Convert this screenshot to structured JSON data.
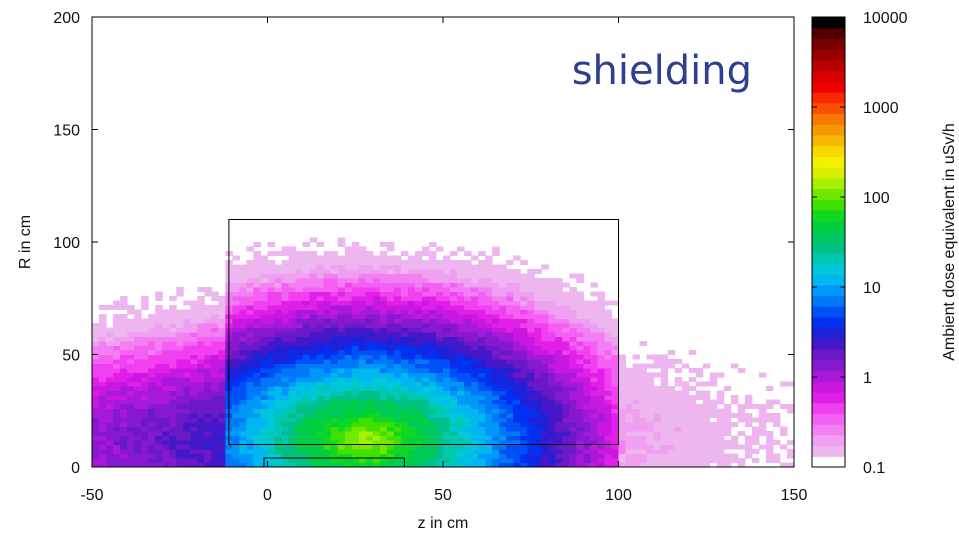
{
  "chart_data": {
    "type": "heatmap",
    "title": "",
    "annotation": "shielding",
    "xlabel": "z in cm",
    "ylabel": "R in cm",
    "xlim": [
      -50,
      150
    ],
    "ylim": [
      0,
      200
    ],
    "x_ticks": [
      "-50",
      "0",
      "50",
      "100",
      "150"
    ],
    "y_ticks": [
      "0",
      "50",
      "100",
      "150",
      "200"
    ],
    "grid": false,
    "colorbar": {
      "label": "Ambient dose equivalent in uSv/h",
      "scale": "log",
      "range": [
        0.1,
        10000
      ],
      "ticks": [
        "0.1",
        "1",
        "10",
        "100",
        "1000",
        "10000"
      ],
      "colors": [
        "#ffffff",
        "#eeb6ee",
        "#f0a0f0",
        "#f380f3",
        "#f460f4",
        "#f040f0",
        "#e020e8",
        "#c818e0",
        "#a818d8",
        "#8818d0",
        "#6a18c8",
        "#4418c8",
        "#2020d8",
        "#0030f0",
        "#0050f8",
        "#0078f8",
        "#0098f8",
        "#00b8f0",
        "#00c8d8",
        "#00c8b0",
        "#00c088",
        "#00c860",
        "#00d040",
        "#10d820",
        "#40e000",
        "#70e800",
        "#a8f000",
        "#d8f000",
        "#f0f000",
        "#f8d800",
        "#f8b800",
        "#f89800",
        "#f87800",
        "#f85000",
        "#f82800",
        "#f00000",
        "#d80000",
        "#b80000",
        "#980000",
        "#780000",
        "#500000",
        "#000000"
      ]
    },
    "shapes": [
      {
        "name": "shield-outline",
        "z": [
          -11,
          100
        ],
        "R": [
          10,
          110
        ]
      },
      {
        "name": "source-outline",
        "z": [
          -1,
          39
        ],
        "R": [
          0,
          4
        ]
      }
    ],
    "source": {
      "z_center": 28,
      "R_center": 14,
      "peak_dose": 150
    }
  }
}
